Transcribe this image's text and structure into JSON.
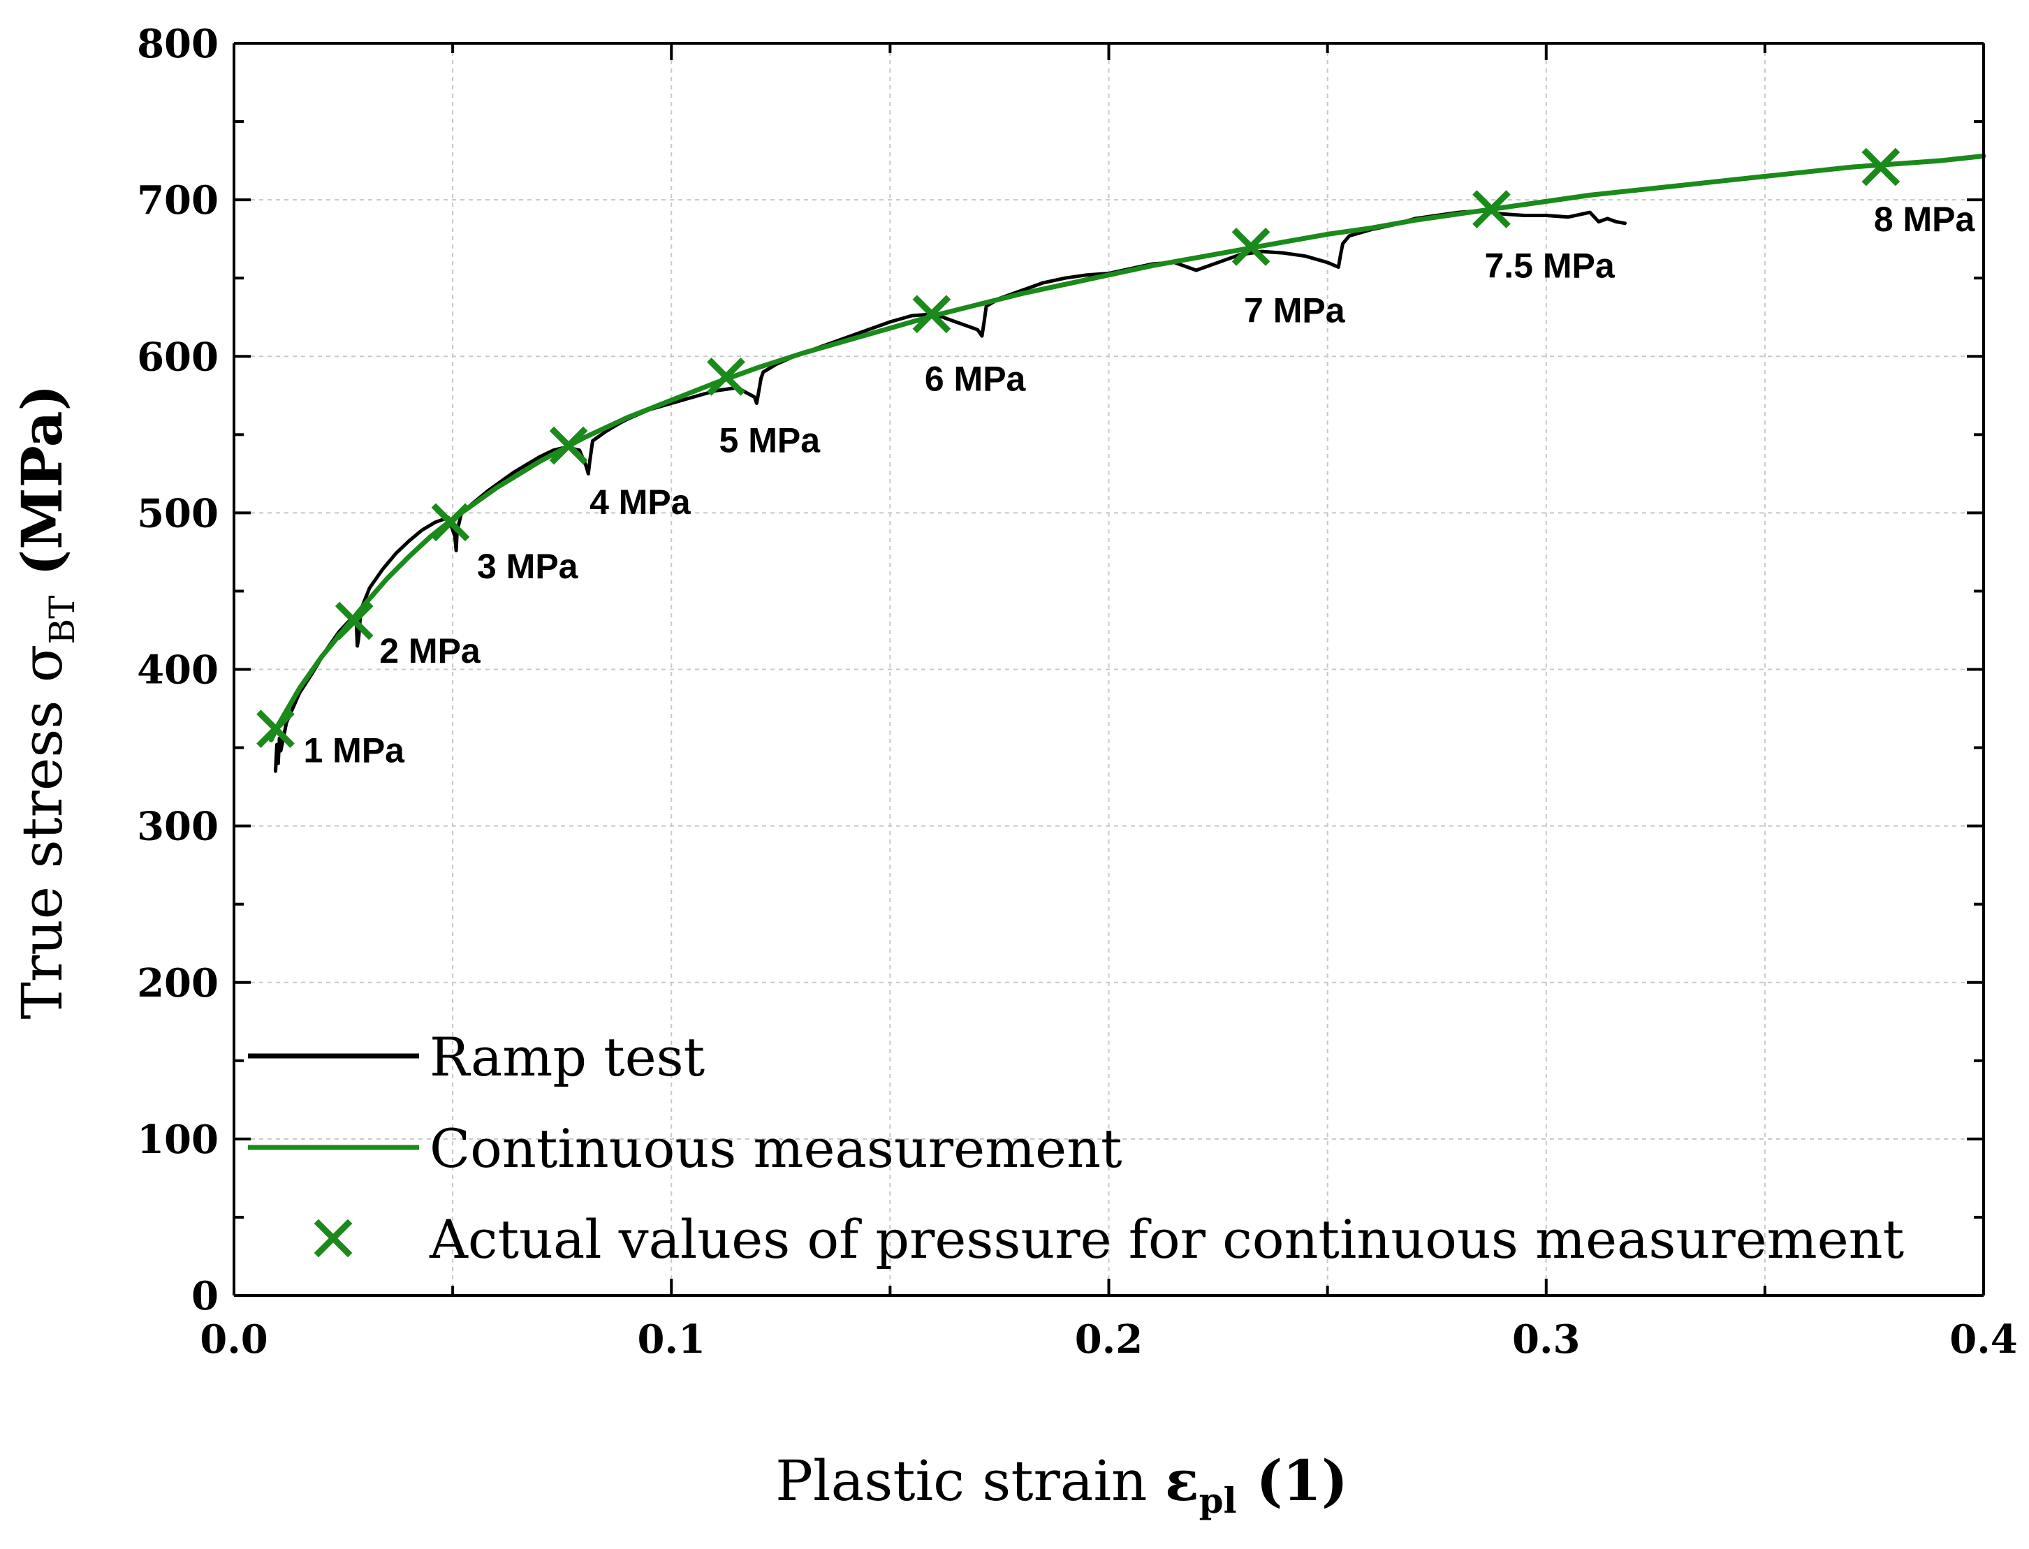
{
  "chart_data": {
    "type": "line",
    "xlabel": {
      "prefix": "Plastic strain ",
      "symbol": "ε",
      "subscript": "pl",
      "unit": " (1)"
    },
    "ylabel": {
      "prefix": "True stress ",
      "symbol": "σ",
      "subscript": "BT",
      "unit": " (MPa)"
    },
    "xlim": [
      0,
      0.4
    ],
    "ylim": [
      0,
      800
    ],
    "x_ticks": [
      0.0,
      0.1,
      0.2,
      0.3,
      0.4
    ],
    "x_tick_labels": [
      "0.0",
      "0.1",
      "0.2",
      "0.3",
      "0.4"
    ],
    "y_ticks": [
      0,
      100,
      200,
      300,
      400,
      500,
      600,
      700,
      800
    ],
    "y_tick_labels": [
      "0",
      "100",
      "200",
      "300",
      "400",
      "500",
      "600",
      "700",
      "800"
    ],
    "grid": true,
    "legend_position": "bottom-left",
    "colors": {
      "ramp": "#000000",
      "continuous": "#1a8a1a",
      "marker": "#1a8a1a",
      "grid": "#c8c8c8"
    },
    "series": [
      {
        "name": "Ramp test",
        "legend_label": "Ramp test",
        "x": [
          0.0095,
          0.0098,
          0.0101,
          0.0104,
          0.0107,
          0.012,
          0.015,
          0.018,
          0.021,
          0.024,
          0.026,
          0.0275,
          0.028,
          0.0282,
          0.0285,
          0.029,
          0.031,
          0.034,
          0.037,
          0.04,
          0.043,
          0.046,
          0.049,
          0.0505,
          0.0508,
          0.051,
          0.052,
          0.055,
          0.058,
          0.061,
          0.064,
          0.067,
          0.07,
          0.073,
          0.076,
          0.079,
          0.0805,
          0.081,
          0.0813,
          0.082,
          0.085,
          0.088,
          0.09,
          0.095,
          0.1,
          0.105,
          0.11,
          0.115,
          0.119,
          0.1195,
          0.12,
          0.1205,
          0.121,
          0.124,
          0.128,
          0.132,
          0.136,
          0.14,
          0.145,
          0.15,
          0.155,
          0.16,
          0.165,
          0.17,
          0.171,
          0.1715,
          0.172,
          0.175,
          0.18,
          0.185,
          0.19,
          0.195,
          0.2,
          0.205,
          0.21,
          0.215,
          0.218,
          0.22,
          0.225,
          0.23,
          0.235,
          0.24,
          0.245,
          0.25,
          0.2525,
          0.253,
          0.2535,
          0.255,
          0.26,
          0.265,
          0.27,
          0.275,
          0.28,
          0.285,
          0.29,
          0.295,
          0.3,
          0.305,
          0.31,
          0.312,
          0.314,
          0.316,
          0.318
        ],
        "y": [
          335,
          352,
          340,
          356,
          348,
          366,
          385,
          398,
          412,
          424,
          430,
          434,
          428,
          415,
          420,
          438,
          452,
          464,
          474,
          482,
          489,
          494,
          497,
          485,
          476,
          488,
          500,
          507,
          514,
          520,
          526,
          531,
          536,
          540,
          542,
          540,
          530,
          525,
          532,
          546,
          552,
          557,
          560,
          566,
          570,
          574,
          578,
          580,
          574,
          570,
          578,
          586,
          590,
          595,
          600,
          604,
          608,
          612,
          617,
          622,
          626,
          627,
          622,
          617,
          613,
          622,
          632,
          637,
          642,
          647,
          650,
          652,
          653,
          656,
          659,
          660,
          657,
          655,
          660,
          665,
          667,
          666,
          664,
          660,
          657,
          665,
          672,
          677,
          681,
          684,
          688,
          690,
          692,
          693,
          691,
          690,
          690,
          689,
          692,
          686,
          688,
          686,
          685
        ]
      },
      {
        "name": "Continuous measurement",
        "legend_label": "Continuous measurement",
        "x": [
          0.0085,
          0.01,
          0.015,
          0.02,
          0.025,
          0.03,
          0.035,
          0.04,
          0.045,
          0.05,
          0.06,
          0.07,
          0.08,
          0.09,
          0.1,
          0.11,
          0.12,
          0.13,
          0.14,
          0.15,
          0.16,
          0.17,
          0.18,
          0.19,
          0.2,
          0.21,
          0.22,
          0.23,
          0.24,
          0.25,
          0.26,
          0.27,
          0.28,
          0.29,
          0.3,
          0.31,
          0.32,
          0.33,
          0.34,
          0.35,
          0.36,
          0.37,
          0.38,
          0.39,
          0.4
        ],
        "y": [
          355,
          364,
          388,
          408,
          425,
          442,
          458,
          472,
          485,
          496,
          516,
          533,
          548,
          561,
          572,
          583,
          593,
          602,
          610,
          618,
          626,
          633,
          640,
          646,
          652,
          658,
          663,
          668,
          673,
          678,
          682,
          687,
          691,
          695,
          699,
          703,
          706,
          709,
          712,
          715,
          718,
          721,
          723,
          725,
          728
        ]
      }
    ],
    "markers": {
      "name": "Actual values of pressure for continuous measurement",
      "legend_label": "Actual values of pressure for continuous measurement",
      "points": [
        {
          "x": 0.0095,
          "y": 362,
          "label": "1 MPa"
        },
        {
          "x": 0.0275,
          "y": 431,
          "label": "2 MPa"
        },
        {
          "x": 0.0495,
          "y": 494,
          "label": "3 MPa"
        },
        {
          "x": 0.0765,
          "y": 543,
          "label": "4 MPa"
        },
        {
          "x": 0.1125,
          "y": 587,
          "label": "5 MPa"
        },
        {
          "x": 0.1595,
          "y": 627,
          "label": "6 MPa"
        },
        {
          "x": 0.2325,
          "y": 670,
          "label": "7 MPa"
        },
        {
          "x": 0.2875,
          "y": 694,
          "label": "7.5 MPa"
        },
        {
          "x": 0.3765,
          "y": 721,
          "label": "8 MPa"
        }
      ]
    }
  }
}
